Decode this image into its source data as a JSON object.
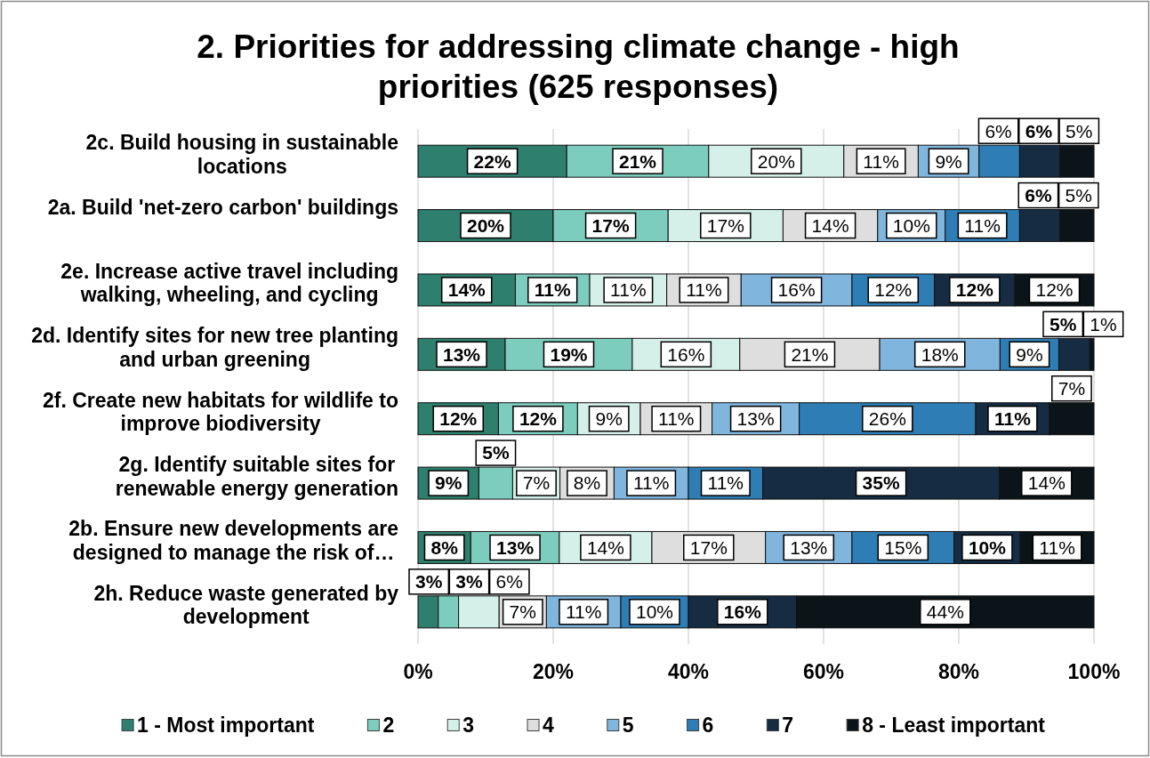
{
  "chart_data": {
    "type": "bar",
    "orientation": "horizontal",
    "stacked": true,
    "title": "2. Priorities for addressing climate change - high priorities (625 responses)",
    "categories": [
      "2c. Build housing in sustainable locations",
      "2a. Build 'net-zero carbon' buildings",
      "2e. Increase active travel including walking, wheeling, and cycling",
      "2d. Identify sites for new tree planting and urban greening",
      "2f. Create new habitats for wildlife to improve biodiversity",
      "2g. Identify suitable sites for renewable energy generation",
      "2b. Ensure new developments are designed to manage the risk of…",
      "2h. Reduce waste generated by development"
    ],
    "series": [
      {
        "name": "1 - Most important",
        "color": "#2f7f6e",
        "values": [
          22,
          20,
          14.4,
          12.9,
          11.9,
          9,
          7.8,
          3
        ],
        "value_labels": [
          "22%",
          "20%",
          "14%",
          "13%",
          "12%",
          "9%",
          "8%",
          "3%"
        ]
      },
      {
        "name": "2",
        "color": "#7dcdbf",
        "values": [
          21,
          17,
          11,
          18.8,
          11.7,
          5,
          13.1,
          3
        ],
        "value_labels": [
          "21%",
          "17%",
          "11%",
          "19%",
          "12%",
          "5%",
          "13%",
          "3%"
        ]
      },
      {
        "name": "3",
        "color": "#d5efe9",
        "values": [
          20,
          17,
          11.4,
          15.9,
          9.3,
          7,
          13.7,
          6
        ],
        "value_labels": [
          "20%",
          "17%",
          "11%",
          "16%",
          "9%",
          "7%",
          "14%",
          "6%"
        ]
      },
      {
        "name": "4",
        "color": "#dedede",
        "values": [
          11,
          14,
          11,
          20.7,
          10.6,
          8,
          16.8,
          7
        ],
        "value_labels": [
          "11%",
          "14%",
          "11%",
          "21%",
          "11%",
          "8%",
          "17%",
          "7%"
        ]
      },
      {
        "name": "5",
        "color": "#80b5dd",
        "values": [
          9,
          10,
          16.4,
          17.8,
          12.9,
          11,
          12.8,
          11
        ],
        "value_labels": [
          "9%",
          "10%",
          "16%",
          "18%",
          "13%",
          "11%",
          "13%",
          "11%"
        ]
      },
      {
        "name": "6",
        "color": "#2e7db5",
        "values": [
          6,
          11,
          12.2,
          8.7,
          26.1,
          11,
          15.1,
          10
        ],
        "value_labels": [
          "6%",
          "11%",
          "12%",
          "9%",
          "26%",
          "11%",
          "15%",
          "10%"
        ]
      },
      {
        "name": "7",
        "color": "#152c43",
        "values": [
          6,
          6,
          11.9,
          4.6,
          10.9,
          35,
          9.8,
          16
        ],
        "value_labels": [
          "6%",
          "6%",
          "12%",
          "5%",
          "11%",
          "35%",
          "10%",
          "16%"
        ]
      },
      {
        "name": "8 - Least important",
        "color": "#0a1419",
        "values": [
          5,
          5,
          11.7,
          0.6,
          6.6,
          14,
          10.9,
          44
        ],
        "value_labels": [
          "5%",
          "5%",
          "12%",
          "1%",
          "7%",
          "14%",
          "11%",
          "44%"
        ]
      }
    ],
    "xlim": [
      0,
      100
    ],
    "xticks": [
      {
        "value": 0,
        "label": "0%"
      },
      {
        "value": 20,
        "label": "20%"
      },
      {
        "value": 40,
        "label": "40%"
      },
      {
        "value": 60,
        "label": "60%"
      },
      {
        "value": 80,
        "label": "80%"
      },
      {
        "value": 100,
        "label": "100%"
      }
    ],
    "grid": "x",
    "legend": "bottom"
  }
}
